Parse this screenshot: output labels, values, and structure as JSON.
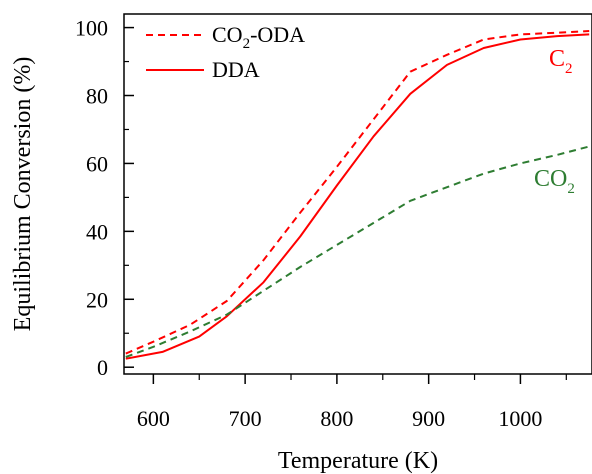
{
  "chart_data": {
    "type": "line",
    "xlabel": "Temperature (K)",
    "ylabel": "Equilibrium Conversion (%)",
    "xlim": [
      568,
      1078
    ],
    "ylim": [
      -2,
      104
    ],
    "xticks": [
      600,
      700,
      800,
      900,
      1000
    ],
    "yticks": [
      0,
      20,
      40,
      60,
      80,
      100
    ],
    "legend_position": "top-left",
    "legend": [
      {
        "text": "CO",
        "sub": "2",
        "rest": "-ODA",
        "color": "#ff0000",
        "dash": "dashed"
      },
      {
        "text": "DDA",
        "sub": "",
        "rest": "",
        "color": "#ff0000",
        "dash": "solid"
      }
    ],
    "annotations": [
      {
        "text": "C",
        "sub": "2",
        "color": "#ff0000",
        "at": [
          1058,
          91
        ]
      },
      {
        "text": "CO",
        "sub": "2",
        "color": "#2e7d32",
        "at": [
          1045,
          55
        ]
      }
    ],
    "series": [
      {
        "name": "CO2-ODA (C2)",
        "color": "#ff0000",
        "dash": "dashed",
        "x": [
          570,
          600,
          640,
          680,
          720,
          760,
          800,
          840,
          880,
          920,
          960,
          1000,
          1040,
          1075
        ],
        "y": [
          4,
          7.5,
          12.5,
          19.5,
          31.5,
          45.5,
          59,
          73,
          87,
          92,
          96.5,
          98,
          98.5,
          99
        ]
      },
      {
        "name": "DDA",
        "color": "#ff0000",
        "dash": "solid",
        "x": [
          570,
          610,
          650,
          680,
          720,
          760,
          800,
          840,
          880,
          920,
          960,
          1000,
          1040,
          1075
        ],
        "y": [
          2.5,
          4.5,
          9,
          15,
          25,
          38.5,
          53.5,
          68,
          80.5,
          89,
          94,
          96.5,
          97.5,
          98
        ]
      },
      {
        "name": "CO2",
        "color": "#2e7d32",
        "dash": "dashed",
        "x": [
          570,
          600,
          640,
          680,
          720,
          760,
          800,
          840,
          880,
          920,
          960,
          1000,
          1040,
          1075
        ],
        "y": [
          3,
          6,
          10.5,
          15.5,
          22.5,
          29.5,
          36,
          42.5,
          49,
          53,
          57,
          60,
          62.5,
          65
        ]
      }
    ]
  }
}
